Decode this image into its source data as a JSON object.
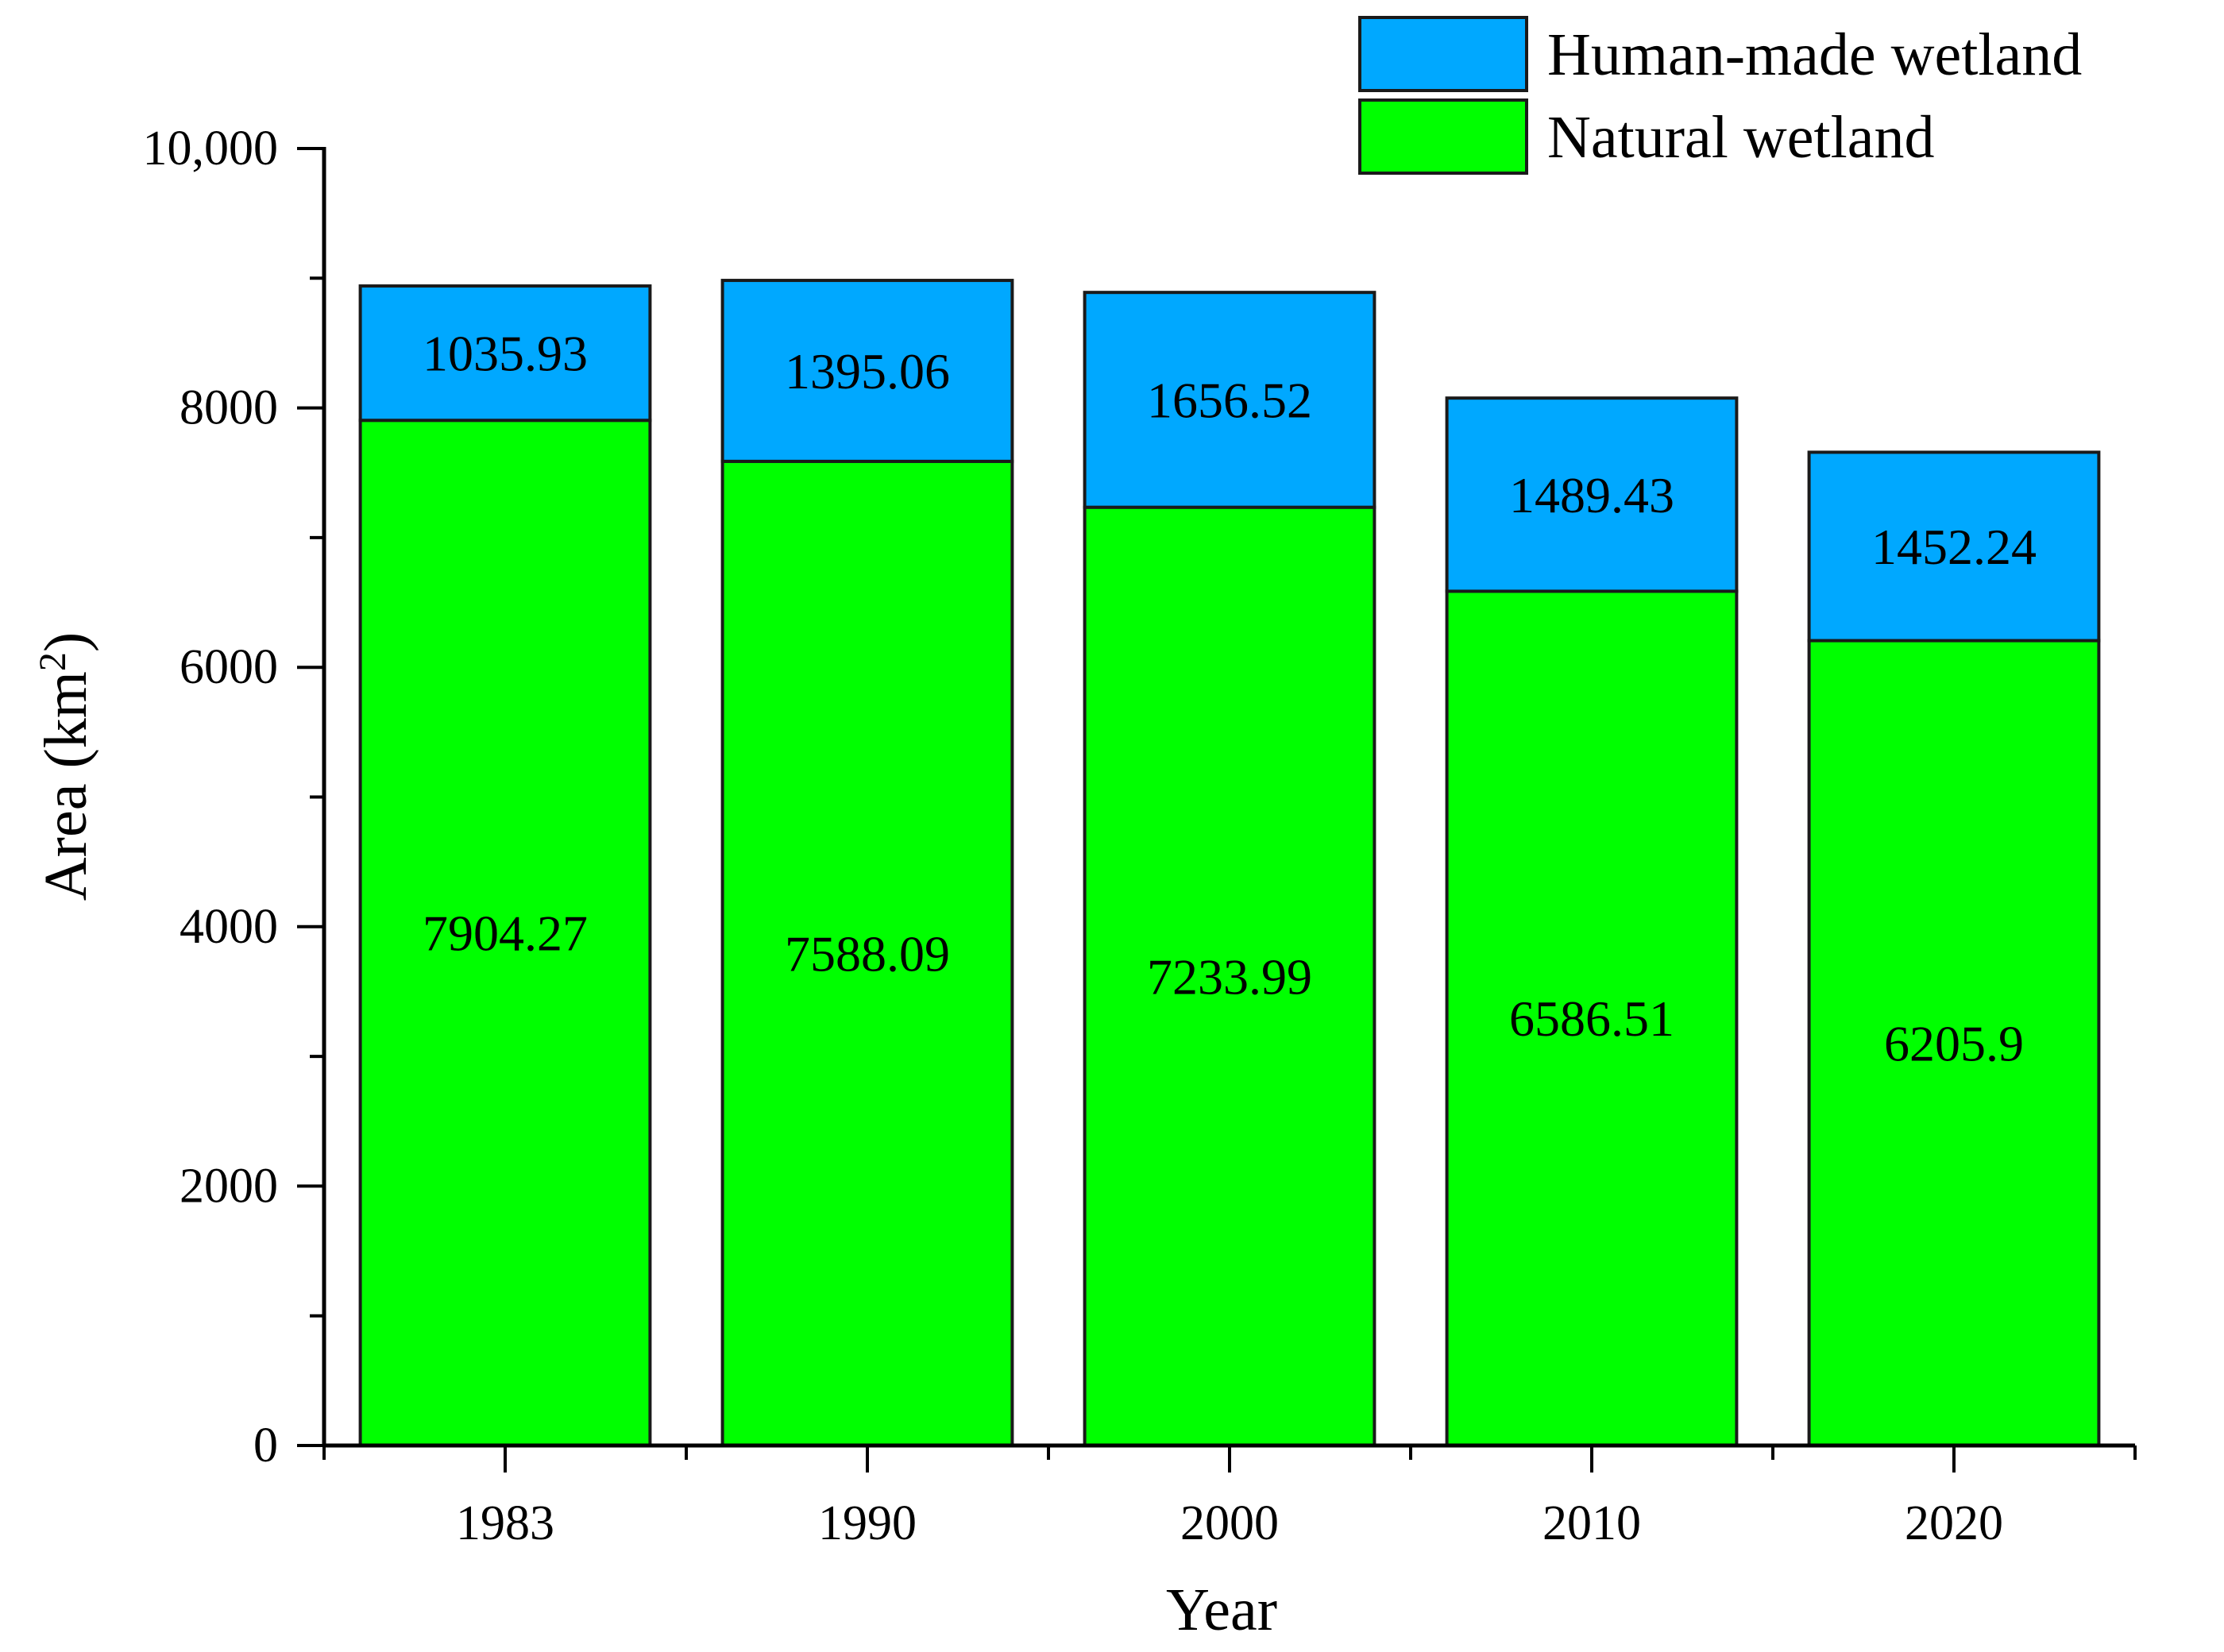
{
  "chart_data": {
    "type": "bar",
    "stacked": true,
    "categories": [
      "1983",
      "1990",
      "2000",
      "2010",
      "2020"
    ],
    "series": [
      {
        "name": "Natural wetland",
        "color": "#00ff00",
        "values": [
          7904.27,
          7588.09,
          7233.99,
          6586.51,
          6205.9
        ],
        "labels": [
          "7904.27",
          "7588.09",
          "7233.99",
          "6586.51",
          "6205.9"
        ]
      },
      {
        "name": "Human-made wetland",
        "color": "#00a8ff",
        "values": [
          1035.93,
          1395.06,
          1656.52,
          1489.43,
          1452.24
        ],
        "labels": [
          "1035.93",
          "1395.06",
          "1656.52",
          "1489.43",
          "1452.24"
        ]
      }
    ],
    "legend_order": [
      "Human-made wetland",
      "Natural wetland"
    ],
    "xlabel": "Year",
    "ylabel_main": "Area (km",
    "ylabel_sup": "2",
    "ylabel_close": ")",
    "ylim": [
      0,
      10000
    ],
    "yticks": [
      0,
      2000,
      4000,
      6000,
      8000,
      10000
    ],
    "ytick_labels": [
      "0",
      "2000",
      "4000",
      "6000",
      "8000",
      "10,000"
    ],
    "legend_position": "top-right",
    "grid": false
  }
}
